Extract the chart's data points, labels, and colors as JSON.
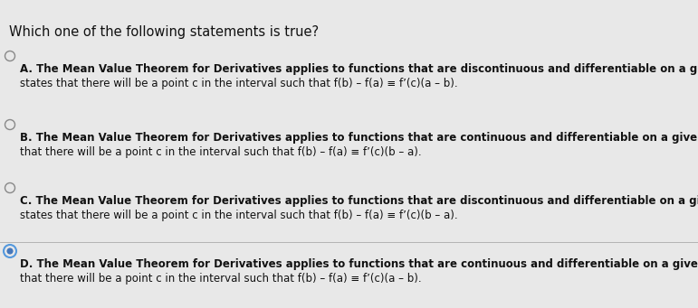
{
  "title": "Which one of the following statements is true?",
  "background_color": "#e8e8e8",
  "text_color": "#111111",
  "options": [
    {
      "label": "A",
      "selected": false,
      "line1": "A. The Mean Value Theorem for Derivatives applies to functions that are discontinuous and differentiable on a given interval [a, b] only and",
      "line2": "states that there will be a point c in the interval such that f(b) – f(a) ≡ f’(c)(a – b)."
    },
    {
      "label": "B",
      "selected": false,
      "line1": "B. The Mean Value Theorem for Derivatives applies to functions that are continuous and differentiable on a given interval [a, b] only and states",
      "line2": "that there will be a point c in the interval such that f(b) – f(a) ≡ f’(c)(b – a)."
    },
    {
      "label": "C",
      "selected": false,
      "line1": "C. The Mean Value Theorem for Derivatives applies to functions that are discontinuous and differentiable on a given interval [a, b] only and",
      "line2": "states that there will be a point c in the interval such that f(b) – f(a) ≡ f’(c)(b – a)."
    },
    {
      "label": "D",
      "selected": true,
      "line1": "D. The Mean Value Theorem for Derivatives applies to functions that are continuous and differentiable on a given interval [a, b] only and states",
      "line2": "that there will be a point c in the interval such that f(b) – f(a) ≡ f’(c)(a – b)."
    }
  ],
  "title_fontsize": 10.5,
  "option_fontsize": 8.5,
  "line2_fontsize": 8.5
}
